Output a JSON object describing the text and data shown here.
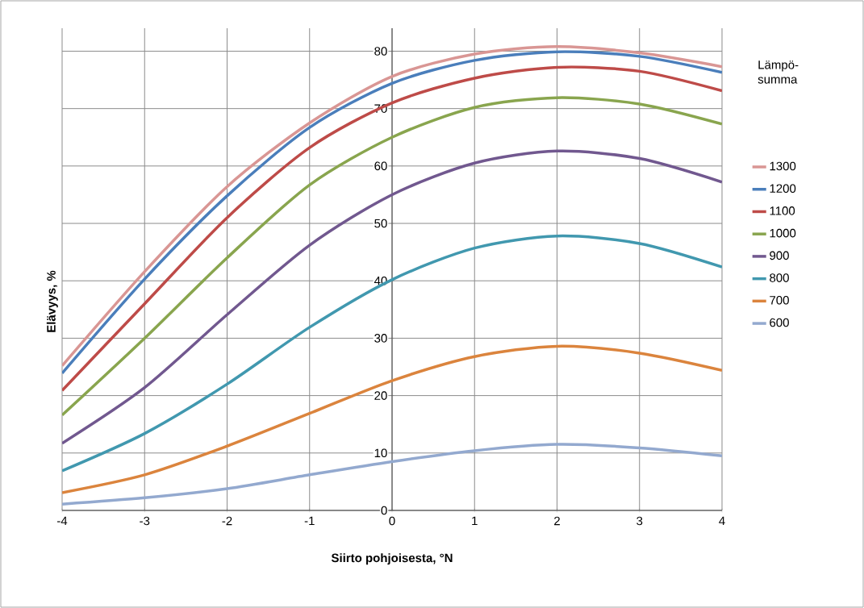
{
  "chart_data": {
    "type": "line",
    "xlabel": "Siirto pohjoisesta, °N",
    "ylabel": "Elävyys, %",
    "legend_title": "Lämpö-summa",
    "x": [
      -4,
      -3,
      -2,
      -1,
      0,
      1,
      2,
      3,
      4
    ],
    "series": [
      {
        "name": "1300",
        "color": "#d99694",
        "values": [
          25.2,
          41.6,
          56.4,
          67.5,
          75.6,
          79.5,
          80.8,
          79.7,
          77.3
        ]
      },
      {
        "name": "1200",
        "color": "#4a7ebb",
        "values": [
          23.9,
          40.3,
          54.8,
          66.7,
          74.4,
          78.4,
          79.9,
          79.1,
          76.3
        ]
      },
      {
        "name": "1100",
        "color": "#be4b48",
        "values": [
          20.9,
          36.0,
          51.0,
          63.2,
          71.0,
          75.3,
          77.2,
          76.5,
          73.1
        ]
      },
      {
        "name": "1000",
        "color": "#89a54e",
        "values": [
          16.6,
          30.0,
          44.0,
          56.7,
          65.0,
          70.2,
          71.9,
          70.8,
          67.3
        ]
      },
      {
        "name": "900",
        "color": "#71588f",
        "values": [
          11.7,
          21.4,
          34.1,
          46.2,
          55.0,
          60.5,
          62.6,
          61.3,
          57.2
        ]
      },
      {
        "name": "800",
        "color": "#4198af",
        "values": [
          6.9,
          13.4,
          22.0,
          31.9,
          40.2,
          45.7,
          47.8,
          46.5,
          42.4
        ]
      },
      {
        "name": "700",
        "color": "#db843d",
        "values": [
          3.1,
          6.2,
          11.2,
          16.9,
          22.6,
          26.8,
          28.6,
          27.4,
          24.4
        ]
      },
      {
        "name": "600",
        "color": "#93a9cf",
        "values": [
          1.1,
          2.2,
          3.8,
          6.2,
          8.5,
          10.4,
          11.5,
          10.9,
          9.5
        ]
      }
    ],
    "xlim": [
      -4,
      4
    ],
    "ylim": [
      0,
      84
    ],
    "xticks": [
      -4,
      -3,
      -2,
      -1,
      0,
      1,
      2,
      3,
      4
    ],
    "yticks": [
      0,
      10,
      20,
      30,
      40,
      50,
      60,
      70,
      80
    ],
    "grid": true,
    "legend": "right",
    "line_style": "solid"
  }
}
